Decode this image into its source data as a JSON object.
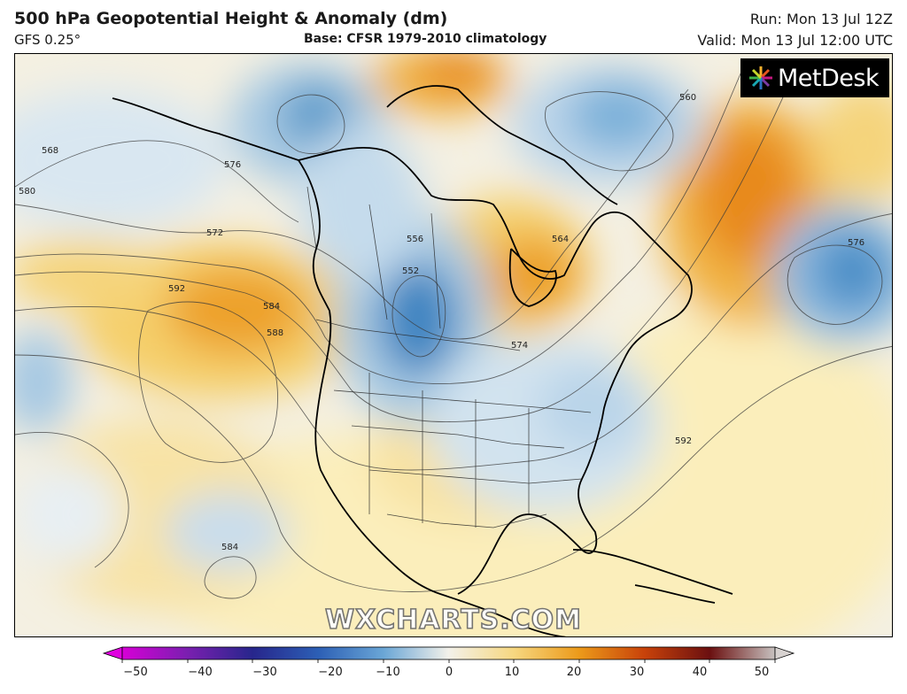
{
  "header": {
    "title": "500 hPa Geopotential Height & Anomaly (dm)",
    "model": "GFS 0.25°",
    "base": "Base: CFSR 1979-2010 climatology",
    "run": "Run: Mon 13 Jul 12Z",
    "valid": "Valid: Mon 13 Jul 12:00 UTC"
  },
  "logo": {
    "text": "MetDesk",
    "icon": "metdesk-flower-icon"
  },
  "watermark": "WXCHARTS.COM",
  "contour_labels": [
    "568",
    "580",
    "572",
    "592",
    "584",
    "588",
    "556",
    "552",
    "564",
    "576",
    "560",
    "574",
    "592",
    "584",
    "576"
  ],
  "colorbar": {
    "ticks": [
      "−50",
      "−40",
      "−30",
      "−20",
      "−10",
      "0",
      "10",
      "20",
      "30",
      "40",
      "50"
    ],
    "stops": [
      "#d600d6",
      "#7a1fb0",
      "#27268c",
      "#2c5fb5",
      "#6aa6d6",
      "#f3f1ea",
      "#f6d780",
      "#ec9a1a",
      "#c8420a",
      "#6b1010",
      "#c7c1bf"
    ]
  },
  "anomaly_colors": {
    "warm_light": "#fbeebb",
    "warm_mid": "#f5cf6a",
    "warm_strong": "#eda12c",
    "warm_peak": "#e57e12",
    "cool_light": "#dfe9f1",
    "cool_mid": "#a9cae3",
    "cool_strong": "#5e9ccb",
    "cool_peak": "#3e84c1"
  }
}
